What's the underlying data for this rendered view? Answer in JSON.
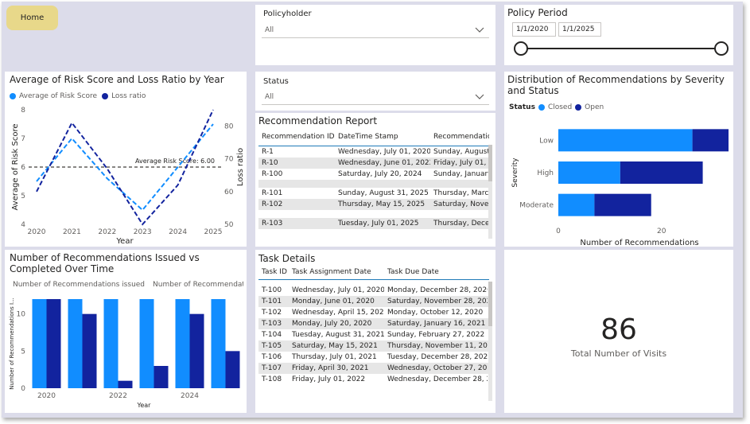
{
  "home_button": "Home",
  "policyholder": {
    "label": "Policyholder",
    "value": "All"
  },
  "status": {
    "label": "Status",
    "value": "All"
  },
  "policy_period": {
    "label": "Policy Period",
    "start": "1/1/2020",
    "end": "1/1/2025",
    "range_fraction": [
      0,
      1
    ]
  },
  "risk_chart": {
    "title": "Average of Risk Score and Loss Ratio by Year",
    "legend": [
      "Average of Risk Score",
      "Loss ratio"
    ],
    "ylabel_left": "Average of Risk Score",
    "ylabel_right": "Loss ratio",
    "xlabel": "Year",
    "ref_label": "Average Risk Score: 6.00",
    "colors": {
      "risk": "#118dff",
      "loss": "#12239e"
    }
  },
  "rec_chart": {
    "title": "Number of Recommendations Issued vs Completed Over Time",
    "legend": [
      "Number of Recommendations issued",
      "Number of Recommendations ..."
    ],
    "ylabel": "Number of Recommendations I...",
    "xlabel": "Year"
  },
  "severity_chart": {
    "title": "Distribution of Recommendations by Severity and Status",
    "legend_title": "Status",
    "legend": [
      "Closed",
      "Open"
    ],
    "ylabel": "Severity",
    "xlabel": "Number of Recommendations"
  },
  "rec_report": {
    "title": "Recommendation Report",
    "columns": [
      "Recommendation ID",
      "DateTime Stamp",
      "Recommendatio"
    ],
    "rows": [
      [
        "R-1",
        "Wednesday, July 01, 2020",
        "Sunday, August"
      ],
      [
        "R-10",
        "Wednesday, June 01, 2022",
        "Friday, July 01, 2"
      ],
      [
        "R-100",
        "Saturday, July 20, 2024",
        "Sunday, January"
      ],
      [
        "",
        "",
        ""
      ],
      [
        "R-101",
        "Sunday, August 31, 2025",
        "Thursday, March"
      ],
      [
        "R-102",
        "Thursday, May 15, 2025",
        "Saturday, Novem"
      ],
      [
        "",
        "",
        ""
      ],
      [
        "R-103",
        "Tuesday, July 01, 2025",
        "Thursday, Decem"
      ]
    ]
  },
  "task_details": {
    "title": "Task Details",
    "columns": [
      "Task ID",
      "Task Assignment Date",
      "Task Due Date"
    ],
    "rows": [
      [
        "T-100",
        "Wednesday, July 01, 2020",
        "Monday, December 28, 2020"
      ],
      [
        "T-101",
        "Monday, June 01, 2020",
        "Saturday, November 28, 2020"
      ],
      [
        "T-102",
        "Wednesday, April 15, 2020",
        "Monday, October 12, 2020"
      ],
      [
        "T-103",
        "Monday, July 20, 2020",
        "Saturday, January 16, 2021"
      ],
      [
        "T-104",
        "Tuesday, August 31, 2021",
        "Sunday, February 27, 2022"
      ],
      [
        "T-105",
        "Saturday, May 15, 2021",
        "Thursday, November 11, 2021"
      ],
      [
        "T-106",
        "Thursday, July 01, 2021",
        "Tuesday, December 28, 2021"
      ],
      [
        "T-107",
        "Friday, April 30, 2021",
        "Wednesday, October 27, 2021"
      ],
      [
        "T-108",
        "Friday, July 01, 2022",
        "Wednesday, December 28, 20"
      ]
    ]
  },
  "kpi": {
    "value": "86",
    "label": "Total Number of Visits"
  },
  "chart_data": [
    {
      "type": "line",
      "title": "Average of Risk Score and Loss Ratio by Year",
      "x": [
        2020,
        2021,
        2022,
        2023,
        2024,
        2025
      ],
      "xticks": [
        "2020",
        "2021",
        "2022",
        "2023",
        "2024",
        "2025"
      ],
      "series": [
        {
          "name": "Average of Risk Score",
          "axis": "left",
          "values": [
            5.5,
            7.0,
            5.6,
            4.5,
            6.0,
            7.5
          ]
        },
        {
          "name": "Loss ratio",
          "axis": "right",
          "values": [
            60,
            81,
            67,
            50,
            62,
            85
          ]
        }
      ],
      "ylim_left": [
        4,
        8
      ],
      "yticks_left": [
        "4",
        "5",
        "6",
        "7",
        "8"
      ],
      "ylim_right": [
        50,
        85
      ],
      "yticks_right": [
        "50",
        "60",
        "70",
        "80"
      ],
      "reference_line": 6.0,
      "xlabel": "Year",
      "ylabel": "Average of Risk Score",
      "ylabel_right": "Loss ratio",
      "legend": "top-left"
    },
    {
      "type": "bar",
      "title": "Number of Recommendations Issued vs Completed Over Time",
      "categories": [
        2020,
        2021,
        2022,
        2023,
        2024,
        2025
      ],
      "xticks": [
        "2020",
        "2022",
        "2024"
      ],
      "series": [
        {
          "name": "Number of Recommendations issued",
          "values": [
            12,
            12,
            12,
            12,
            12,
            12
          ]
        },
        {
          "name": "Number of Recommendations ...",
          "values": [
            12,
            10,
            1,
            3,
            10,
            5
          ]
        }
      ],
      "ylim": [
        0,
        12
      ],
      "yticks": [
        "0",
        "5",
        "10"
      ],
      "xlabel": "Year",
      "ylabel": "Number of Recommendations I...",
      "legend": "top-left"
    },
    {
      "type": "bar",
      "orientation": "horizontal",
      "stacked": true,
      "title": "Distribution of Recommendations by Severity and Status",
      "categories": [
        "Low",
        "High",
        "Moderate"
      ],
      "series": [
        {
          "name": "Closed",
          "values": [
            26,
            12,
            7
          ]
        },
        {
          "name": "Open",
          "values": [
            7,
            16,
            11
          ]
        }
      ],
      "xlim": [
        0,
        33
      ],
      "xticks": [
        "0",
        "20"
      ],
      "xlabel": "Number of Recommendations",
      "ylabel": "Severity",
      "legend": "top-left"
    }
  ]
}
